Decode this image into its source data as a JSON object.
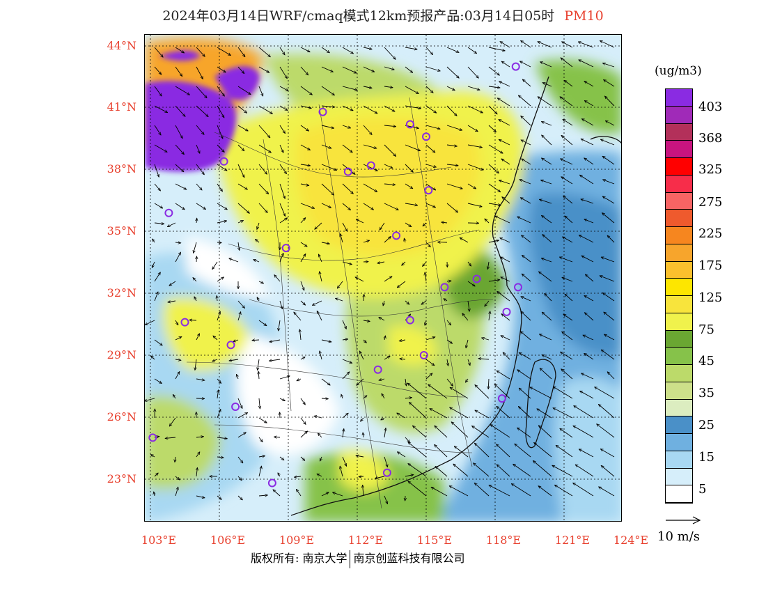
{
  "header": {
    "title": "2024年03月14日WRF/cmaq模式12km预报产品:03月14日05时",
    "pollutant": "PM10"
  },
  "axes": {
    "lat_labels": [
      "44°N",
      "41°N",
      "38°N",
      "35°N",
      "32°N",
      "29°N",
      "26°N",
      "23°N"
    ],
    "lon_labels": [
      "103°E",
      "106°E",
      "109°E",
      "112°E",
      "115°E",
      "118°E",
      "121°E",
      "124°E"
    ]
  },
  "legend": {
    "unit": "(ug/m3)",
    "colors": [
      "#8a2be2",
      "#a02ab8",
      "#b3305a",
      "#c8147f",
      "#ff0000",
      "#f72d4a",
      "#f86464",
      "#ef5a2d",
      "#f6861f",
      "#f7a52c",
      "#fbc02d",
      "#fde600",
      "#f8e43c",
      "#f0f24c",
      "#6aa632",
      "#86c24a",
      "#bcda6a",
      "#cde08a",
      "#dcedc0",
      "#4a90c8",
      "#6fb0e0",
      "#a8d8f2",
      "#d6eefa",
      "#ffffff"
    ],
    "labels": [
      "403",
      "368",
      "325",
      "275",
      "225",
      "175",
      "125",
      "75",
      "45",
      "35",
      "25",
      "15",
      "5"
    ],
    "label_tops": [
      143,
      188,
      233,
      280,
      325,
      371,
      417,
      463,
      508,
      554,
      600,
      646,
      692
    ]
  },
  "wind_reference": {
    "label": "10 m/s"
  },
  "cities": [
    {
      "name": "c1",
      "lon": 118.9,
      "lat": 43.0
    },
    {
      "name": "c2",
      "lon": 110.5,
      "lat": 40.8
    },
    {
      "name": "c3",
      "lon": 114.3,
      "lat": 40.2
    },
    {
      "name": "c4",
      "lon": 115.0,
      "lat": 39.6
    },
    {
      "name": "c5",
      "lon": 111.6,
      "lat": 37.9
    },
    {
      "name": "c6",
      "lon": 106.2,
      "lat": 38.4
    },
    {
      "name": "c7",
      "lon": 112.6,
      "lat": 38.2
    },
    {
      "name": "c8",
      "lon": 115.1,
      "lat": 37.0
    },
    {
      "name": "c9",
      "lon": 103.8,
      "lat": 35.9
    },
    {
      "name": "c10",
      "lon": 113.7,
      "lat": 34.8
    },
    {
      "name": "c11",
      "lon": 108.9,
      "lat": 34.2
    },
    {
      "name": "c12",
      "lon": 117.2,
      "lat": 32.7
    },
    {
      "name": "c13",
      "lon": 115.8,
      "lat": 32.3
    },
    {
      "name": "c14",
      "lon": 119.0,
      "lat": 32.3
    },
    {
      "name": "c15",
      "lon": 118.5,
      "lat": 31.1
    },
    {
      "name": "c16",
      "lon": 104.5,
      "lat": 30.6
    },
    {
      "name": "c17",
      "lon": 114.3,
      "lat": 30.7
    },
    {
      "name": "c18",
      "lon": 106.5,
      "lat": 29.5
    },
    {
      "name": "c19",
      "lon": 114.9,
      "lat": 29.0
    },
    {
      "name": "c20",
      "lon": 112.9,
      "lat": 28.3
    },
    {
      "name": "c21",
      "lon": 118.3,
      "lat": 26.9
    },
    {
      "name": "c22",
      "lon": 106.7,
      "lat": 26.5
    },
    {
      "name": "c23",
      "lon": 103.1,
      "lat": 25.0
    },
    {
      "name": "c24",
      "lon": 113.3,
      "lat": 23.3
    },
    {
      "name": "c25",
      "lon": 108.3,
      "lat": 22.8
    }
  ],
  "footer": {
    "left": "版权所有: 南京大学",
    "right": "南京创蓝科技有限公司"
  }
}
